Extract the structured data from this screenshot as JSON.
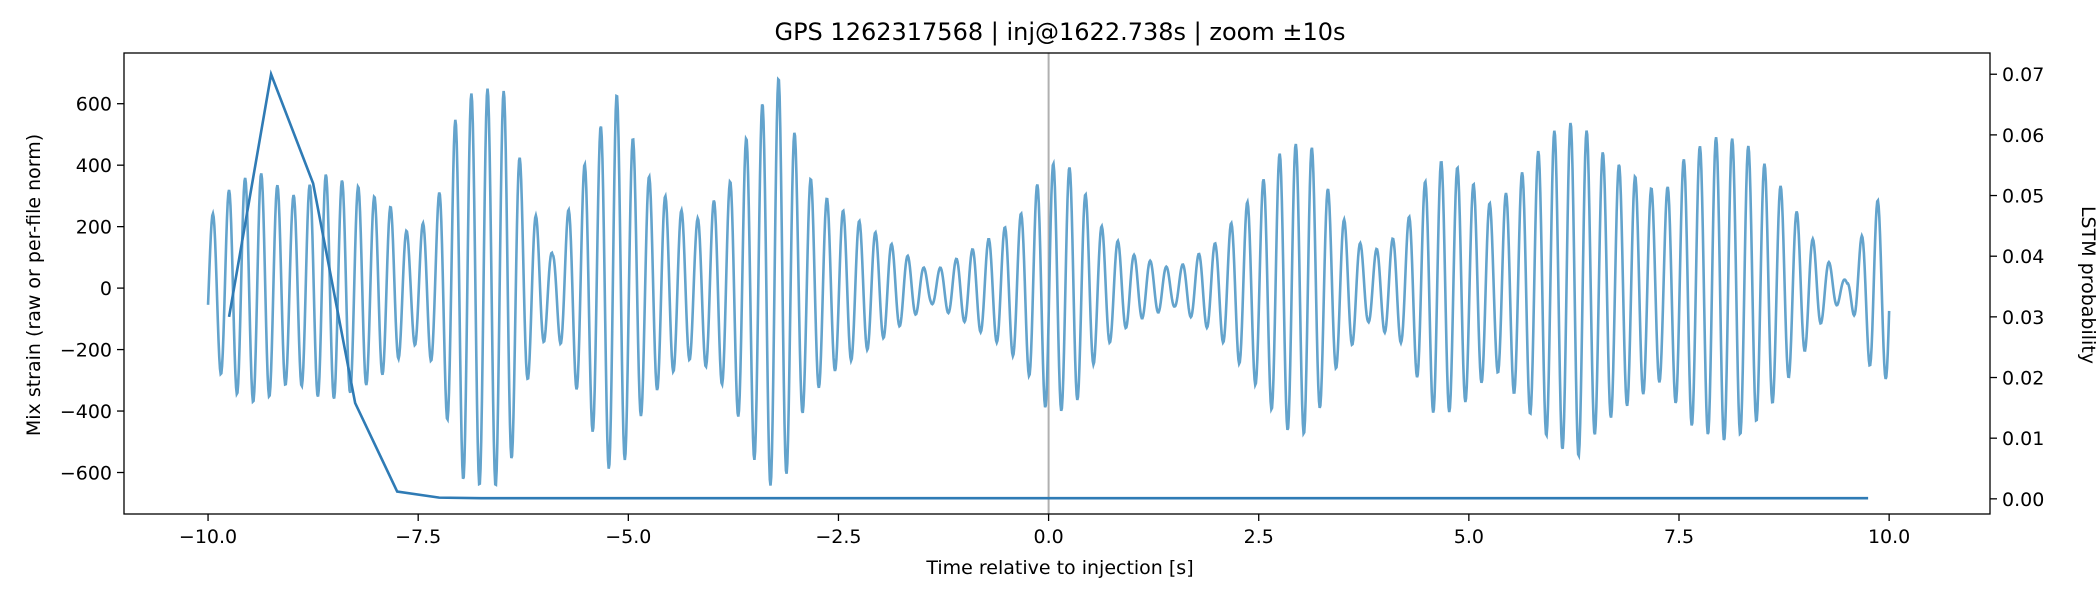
{
  "chart_data": {
    "type": "line",
    "title": "GPS 1262317568 | inj@1622.738s | zoom ±10s",
    "xlabel": "Time relative to injection [s]",
    "ylabel": "Mix strain (raw or per-file norm)",
    "y2label": "LSTM probability",
    "xlim": [
      -11,
      11.2
    ],
    "ylim": [
      -735,
      765
    ],
    "y2lim": [
      -0.0025,
      0.0735
    ],
    "x_ticks": [
      -10.0,
      -7.5,
      -5.0,
      -2.5,
      0.0,
      2.5,
      5.0,
      7.5,
      10.0
    ],
    "x_tick_labels": [
      "−10.0",
      "−7.5",
      "−5.0",
      "−2.5",
      "0.0",
      "2.5",
      "5.0",
      "7.5",
      "10.0"
    ],
    "y_ticks": [
      -600,
      -400,
      -200,
      0,
      200,
      400,
      600
    ],
    "y_tick_labels": [
      "−600",
      "−400",
      "−200",
      "0",
      "200",
      "400",
      "600"
    ],
    "y2_ticks": [
      0.0,
      0.01,
      0.02,
      0.03,
      0.04,
      0.05,
      0.06,
      0.07
    ],
    "y2_tick_labels": [
      "0.00",
      "0.01",
      "0.02",
      "0.03",
      "0.04",
      "0.05",
      "0.06",
      "0.07"
    ],
    "vline_x": 0.0,
    "grid": false,
    "colors": {
      "strain": "#5b9ec9",
      "probability": "#2f7bb5",
      "vline": "#b0b0b0"
    },
    "series": [
      {
        "axis": "right",
        "x": [
          -9.75,
          -9.25,
          -8.75,
          -8.25,
          -7.75,
          -7.25,
          -6.75,
          -6.25,
          -5.75,
          -5.25,
          -4.75,
          -4.25,
          -3.75,
          -3.25,
          -2.75,
          -2.25,
          -1.75,
          -1.25,
          -0.75,
          -0.25,
          0.25,
          0.75,
          1.25,
          1.75,
          2.25,
          2.75,
          3.25,
          3.75,
          4.25,
          4.75,
          5.25,
          5.75,
          6.25,
          6.75,
          7.25,
          7.75,
          8.25,
          8.75,
          9.25,
          9.75
        ],
        "values": [
          0.03,
          0.07,
          0.052,
          0.0158,
          0.0012,
          0.0002,
          0.0001,
          0.0001,
          0.0001,
          0.0001,
          0.0001,
          0.0001,
          0.0001,
          0.0001,
          0.0001,
          0.0001,
          0.0001,
          0.0001,
          0.0001,
          0.0001,
          0.0001,
          0.0001,
          0.0001,
          0.0001,
          0.0001,
          0.0001,
          0.0001,
          0.0001,
          0.0001,
          0.0001,
          0.0001,
          0.0001,
          0.0001,
          0.0001,
          0.0001,
          0.0001,
          0.0001,
          0.0001,
          0.0001,
          0.0001
        ]
      },
      {
        "axis": "left",
        "x_range": [
          -10.0,
          10.0
        ],
        "carrier_hz": 5.2,
        "envelope": [
          [
            -10.0,
            220
          ],
          [
            -9.7,
            340
          ],
          [
            -9.4,
            380
          ],
          [
            -9.0,
            300
          ],
          [
            -8.6,
            370
          ],
          [
            -8.2,
            330
          ],
          [
            -7.8,
            260
          ],
          [
            -7.6,
            170
          ],
          [
            -7.3,
            250
          ],
          [
            -7.0,
            620
          ],
          [
            -6.7,
            650
          ],
          [
            -6.45,
            640
          ],
          [
            -6.2,
            300
          ],
          [
            -5.9,
            110
          ],
          [
            -5.5,
            420
          ],
          [
            -5.15,
            640
          ],
          [
            -4.8,
            380
          ],
          [
            -4.5,
            280
          ],
          [
            -4.2,
            220
          ],
          [
            -3.8,
            340
          ],
          [
            -3.5,
            560
          ],
          [
            -3.2,
            690
          ],
          [
            -2.9,
            380
          ],
          [
            -2.6,
            280
          ],
          [
            -2.2,
            210
          ],
          [
            -1.8,
            130
          ],
          [
            -1.4,
            50
          ],
          [
            -1.0,
            110
          ],
          [
            -0.6,
            180
          ],
          [
            -0.3,
            250
          ],
          [
            0.0,
            410
          ],
          [
            0.3,
            390
          ],
          [
            0.6,
            210
          ],
          [
            1.0,
            110
          ],
          [
            1.5,
            60
          ],
          [
            2.0,
            150
          ],
          [
            2.5,
            330
          ],
          [
            2.8,
            460
          ],
          [
            3.1,
            480
          ],
          [
            3.4,
            270
          ],
          [
            3.8,
            110
          ],
          [
            4.2,
            180
          ],
          [
            4.6,
            420
          ],
          [
            4.9,
            390
          ],
          [
            5.3,
            260
          ],
          [
            5.7,
            400
          ],
          [
            6.0,
            510
          ],
          [
            6.3,
            550
          ],
          [
            6.6,
            440
          ],
          [
            6.9,
            380
          ],
          [
            7.3,
            300
          ],
          [
            7.6,
            440
          ],
          [
            8.0,
            500
          ],
          [
            8.3,
            470
          ],
          [
            8.6,
            380
          ],
          [
            8.9,
            250
          ],
          [
            9.2,
            110
          ],
          [
            9.5,
            20
          ],
          [
            9.8,
            280
          ],
          [
            10.0,
            300
          ]
        ],
        "values": []
      }
    ]
  }
}
